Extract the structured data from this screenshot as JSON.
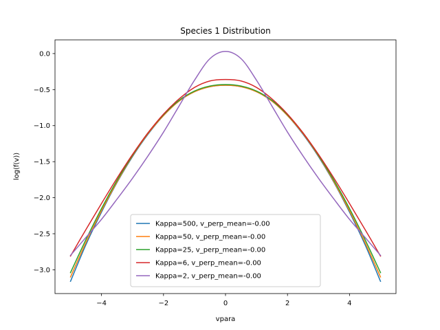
{
  "chart_data": {
    "type": "line",
    "title": "Species 1 Distribution",
    "xlabel": "vpara",
    "ylabel": "log(f(v))",
    "xlim": [
      -5.5,
      5.5
    ],
    "ylim": [
      -3.33,
      0.19
    ],
    "xticks": [
      -4,
      -2,
      0,
      2,
      4
    ],
    "xtick_labels": [
      "−4",
      "−2",
      "0",
      "2",
      "4"
    ],
    "yticks": [
      0.0,
      -0.5,
      -1.0,
      -1.5,
      -2.0,
      -2.5,
      -3.0
    ],
    "ytick_labels": [
      "0.0",
      "−0.5",
      "−1.0",
      "−1.5",
      "−2.0",
      "−2.5",
      "−3.0"
    ],
    "grid": false,
    "legend_position": "lower center",
    "x": [
      -5,
      -4.5,
      -4,
      -3.5,
      -3,
      -2.5,
      -2,
      -1.5,
      -1,
      -0.5,
      0,
      0.5,
      1,
      1.5,
      2,
      2.5,
      3,
      3.5,
      4,
      4.5,
      5
    ],
    "series": [
      {
        "name": "Kappa=500, v_perp_mean=-0.00",
        "color": "#1f77b4",
        "values": [
          -3.16,
          -2.65,
          -2.2,
          -1.79,
          -1.43,
          -1.12,
          -0.86,
          -0.66,
          -0.53,
          -0.46,
          -0.44,
          -0.46,
          -0.53,
          -0.66,
          -0.86,
          -1.12,
          -1.43,
          -1.79,
          -2.2,
          -2.65,
          -3.16
        ]
      },
      {
        "name": "Kappa=50, v_perp_mean=-0.00",
        "color": "#ff7f0e",
        "values": [
          -3.1,
          -2.62,
          -2.18,
          -1.78,
          -1.42,
          -1.11,
          -0.86,
          -0.66,
          -0.53,
          -0.46,
          -0.44,
          -0.46,
          -0.53,
          -0.66,
          -0.86,
          -1.11,
          -1.42,
          -1.78,
          -2.18,
          -2.62,
          -3.1
        ]
      },
      {
        "name": "Kappa=25, v_perp_mean=-0.00",
        "color": "#2ca02c",
        "values": [
          -3.04,
          -2.58,
          -2.15,
          -1.76,
          -1.41,
          -1.1,
          -0.85,
          -0.65,
          -0.52,
          -0.45,
          -0.43,
          -0.45,
          -0.52,
          -0.65,
          -0.85,
          -1.1,
          -1.41,
          -1.76,
          -2.15,
          -2.58,
          -3.04
        ]
      },
      {
        "name": "Kappa=6, v_perp_mean=-0.00",
        "color": "#d62728",
        "values": [
          -2.81,
          -2.44,
          -2.08,
          -1.73,
          -1.4,
          -1.1,
          -0.84,
          -0.63,
          -0.47,
          -0.38,
          -0.36,
          -0.38,
          -0.47,
          -0.63,
          -0.84,
          -1.1,
          -1.4,
          -1.73,
          -2.08,
          -2.44,
          -2.81
        ]
      },
      {
        "name": "Kappa=2, v_perp_mean=-0.00",
        "color": "#9467bd",
        "values": [
          -2.8,
          -2.55,
          -2.3,
          -2.02,
          -1.73,
          -1.42,
          -1.09,
          -0.73,
          -0.37,
          -0.07,
          0.03,
          -0.07,
          -0.37,
          -0.73,
          -1.09,
          -1.42,
          -1.73,
          -2.02,
          -2.3,
          -2.55,
          -2.8
        ]
      }
    ]
  }
}
